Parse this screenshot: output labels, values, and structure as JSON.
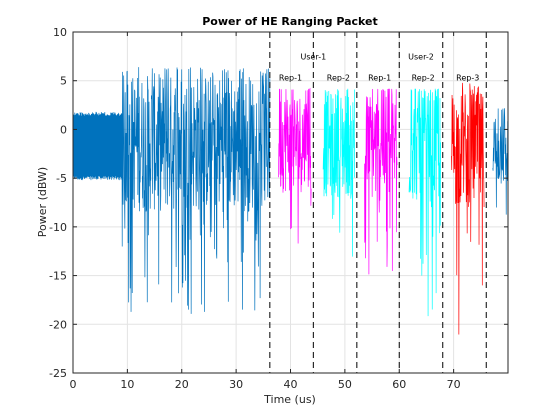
{
  "chart_data": {
    "type": "line",
    "title": "Power of HE Ranging Packet",
    "xlabel": "Time (us)",
    "ylabel": "Power (dBW)",
    "xlim": [
      0,
      80
    ],
    "ylim": [
      -25,
      10
    ],
    "xticks": [
      0,
      10,
      20,
      30,
      40,
      50,
      60,
      70
    ],
    "yticks": [
      -25,
      -20,
      -15,
      -10,
      -5,
      0,
      5,
      10
    ],
    "grid": true,
    "series": [
      {
        "x_range": [
          0,
          36.2
        ],
        "color": "#0072BD",
        "baseline": 0,
        "upper_env": 1.8,
        "lower_env": -5.2,
        "min_spike": -19.2,
        "max_spike": 6.5
      },
      {
        "x_range": [
          37.8,
          43.8
        ],
        "color": "#FF00FF",
        "baseline": -1,
        "upper_env": 4,
        "lower_env": -6.5,
        "min_spike": -11.8,
        "max_spike": 4.2
      },
      {
        "x_range": [
          46.0,
          51.8
        ],
        "color": "#00FFFF",
        "baseline": -1,
        "upper_env": 4,
        "lower_env": -7.0,
        "min_spike": -14.2,
        "max_spike": 4.2
      },
      {
        "x_range": [
          53.6,
          59.6
        ],
        "color": "#FF00FF",
        "baseline": -1,
        "upper_env": 4,
        "lower_env": -7.5,
        "min_spike": -15.6,
        "max_spike": 4.2
      },
      {
        "x_range": [
          61.8,
          67.6
        ],
        "color": "#00FFFF",
        "baseline": -1,
        "upper_env": 4,
        "lower_env": -7.5,
        "min_spike": -19.2,
        "max_spike": 4.2
      },
      {
        "x_range": [
          69.6,
          75.6
        ],
        "color": "#FF0000",
        "baseline": -1,
        "upper_env": 4,
        "lower_env": -8.0,
        "min_spike": -21.2,
        "max_spike": 4.8
      },
      {
        "x_range": [
          77.2,
          80.0
        ],
        "color": "#0072BD",
        "baseline": -1,
        "upper_env": 2,
        "lower_env": -6.0,
        "min_spike": -20.5,
        "max_spike": 2.2
      }
    ],
    "vlines": [
      36.2,
      44.2,
      52.2,
      60.0,
      68.0,
      76.0
    ],
    "annotations": [
      {
        "text": "User-1",
        "x": 44.2,
        "y": 7.2
      },
      {
        "text": "User-2",
        "x": 64.0,
        "y": 7.2
      },
      {
        "text": "Rep-1",
        "x": 40.0,
        "y": 5.0
      },
      {
        "text": "Rep-2",
        "x": 48.8,
        "y": 5.0
      },
      {
        "text": "Rep-1",
        "x": 56.4,
        "y": 5.0
      },
      {
        "text": "Rep-2",
        "x": 64.4,
        "y": 5.0
      },
      {
        "text": "Rep-3",
        "x": 72.6,
        "y": 5.0
      }
    ]
  }
}
